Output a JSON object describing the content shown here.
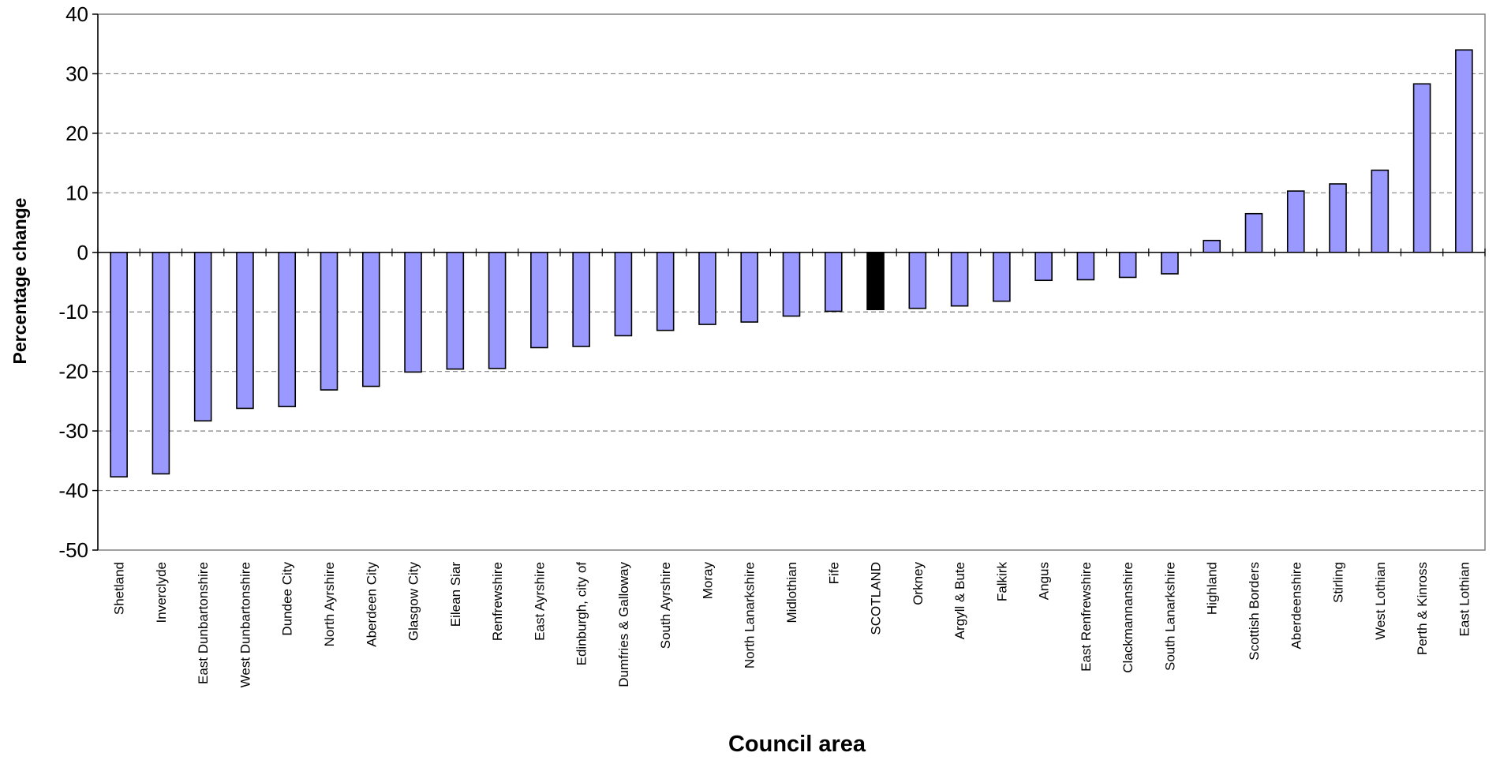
{
  "chart_data": {
    "type": "bar",
    "title": "",
    "xlabel": "Council area",
    "ylabel": "Percentage change",
    "ylim": [
      -50,
      40
    ],
    "yticks": [
      40,
      30,
      20,
      10,
      0,
      -10,
      -20,
      -30,
      -40,
      -50
    ],
    "grid": "horizontal dashed",
    "legend": "none",
    "categories": [
      "Shetland",
      "Inverclyde",
      "East Dunbartonshire",
      "West Dunbartonshire",
      "Dundee City",
      "North Ayrshire",
      "Aberdeen City",
      "Glasgow City",
      "Eilean Siar",
      "Renfrewshire",
      "East Ayrshire",
      "Edinburgh, city of",
      "Dumfries & Galloway",
      "South Ayrshire",
      "Moray",
      "North Lanarkshire",
      "Midlothian",
      "Fife",
      "SCOTLAND",
      "Orkney",
      "Argyll & Bute",
      "Falkirk",
      "Angus",
      "East Renfrewshire",
      "Clackmannanshire",
      "South Lanarkshire",
      "Highland",
      "Scottish Borders",
      "Aberdeenshire",
      "Stirling",
      "West Lothian",
      "Perth & Kinross",
      "East Lothian"
    ],
    "values": [
      -37.7,
      -37.2,
      -28.3,
      -26.2,
      -25.9,
      -23.1,
      -22.5,
      -20.1,
      -19.6,
      -19.5,
      -16.0,
      -15.8,
      -14.0,
      -13.1,
      -12.1,
      -11.7,
      -10.7,
      -9.9,
      -9.6,
      -9.4,
      -9.0,
      -8.2,
      -4.7,
      -4.6,
      -4.2,
      -3.6,
      2.0,
      6.5,
      10.3,
      11.5,
      13.8,
      28.3,
      34.0
    ],
    "colors": {
      "bar": "#9999FF",
      "highlight": "#000000",
      "highlight_category": "SCOTLAND",
      "outline": "#000000",
      "grid": "#808080"
    }
  }
}
